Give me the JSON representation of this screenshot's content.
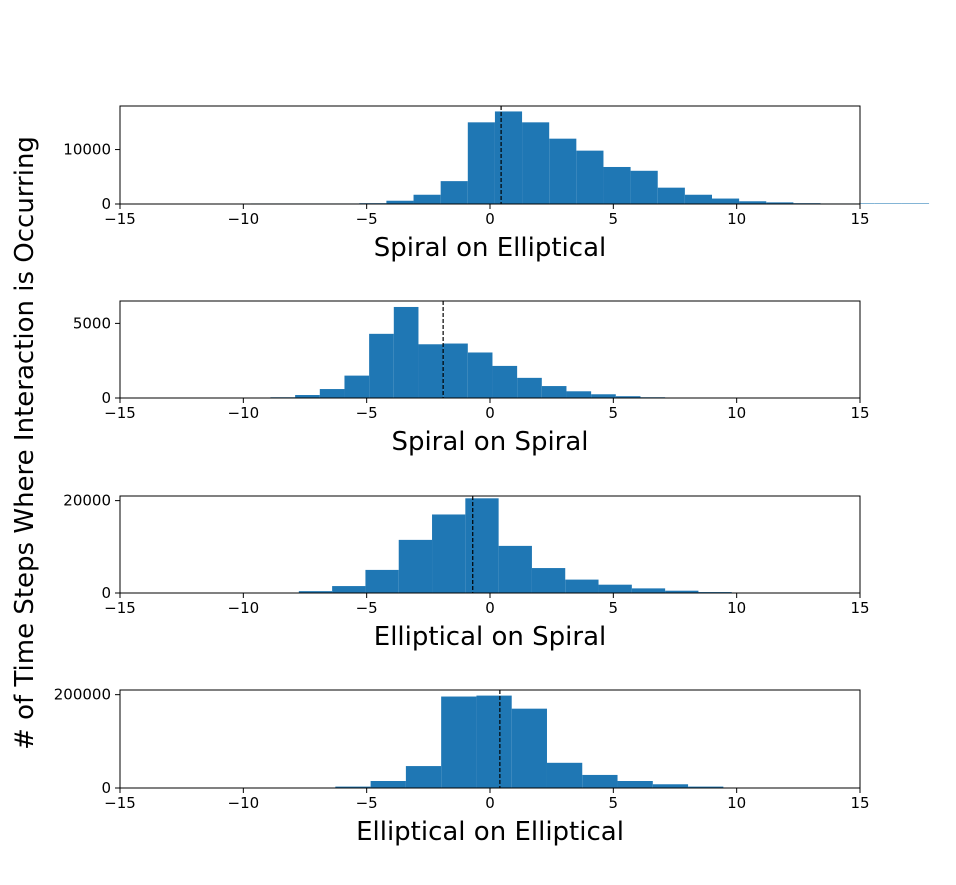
{
  "chart_data": {
    "type": "bar",
    "ylabel": "# of Time Steps Where Interaction is Occurring",
    "bar_color": "#1f77b4",
    "marker_color": "#000000",
    "grid": false,
    "xlim": [
      -15,
      15
    ],
    "xticks": [
      -15,
      -10,
      -5,
      0,
      5,
      10,
      15
    ],
    "xtick_labels": [
      "−15",
      "−10",
      "−5",
      "0",
      "5",
      "10",
      "15"
    ],
    "panels": [
      {
        "xlabel": "Spiral on Elliptical",
        "ylim": [
          0,
          18000
        ],
        "yticks": [
          0,
          10000
        ],
        "ytick_labels": [
          "0",
          "10000"
        ],
        "bin_start": -9.7,
        "bin_width": 1.1,
        "values": [
          100,
          100,
          100,
          100,
          150,
          600,
          1700,
          4200,
          15000,
          17000,
          15000,
          12000,
          9800,
          6800,
          6100,
          3000,
          1700,
          1000,
          500,
          300,
          150,
          100,
          100,
          100,
          100
        ],
        "marker_x": 0.45
      },
      {
        "xlabel": "Spiral on Spiral",
        "ylim": [
          0,
          6500
        ],
        "yticks": [
          0,
          5000
        ],
        "ytick_labels": [
          "0",
          "5000"
        ],
        "bin_start": -8.9,
        "bin_width": 1.0,
        "values": [
          50,
          200,
          600,
          1500,
          4300,
          6100,
          3600,
          3650,
          3050,
          2150,
          1350,
          800,
          450,
          250,
          120,
          50,
          20
        ],
        "marker_x": -1.9
      },
      {
        "xlabel": "Elliptical on Spiral",
        "ylim": [
          0,
          21000
        ],
        "yticks": [
          0,
          20000
        ],
        "ytick_labels": [
          "0",
          "20000"
        ],
        "bin_start": -9.1,
        "bin_width": 1.35,
        "values": [
          100,
          400,
          1500,
          5000,
          11500,
          17000,
          20500,
          10200,
          5400,
          2900,
          1800,
          1000,
          500,
          200,
          100
        ],
        "marker_x": -0.7
      },
      {
        "xlabel": "Elliptical on Elliptical",
        "ylim": [
          0,
          210000
        ],
        "yticks": [
          0,
          200000
        ],
        "ytick_labels": [
          "0",
          "200000"
        ],
        "bin_start": -7.7,
        "bin_width": 1.43,
        "values": [
          1000,
          3000,
          15000,
          47000,
          196000,
          198000,
          170000,
          54000,
          28000,
          15000,
          8000,
          3000,
          1000,
          500,
          200
        ],
        "marker_x": 0.4
      }
    ]
  }
}
